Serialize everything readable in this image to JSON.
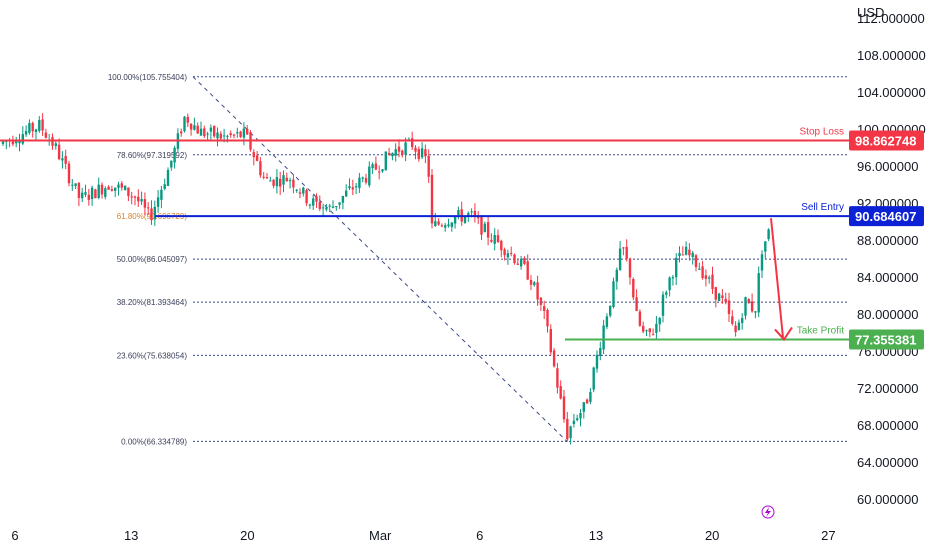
{
  "chart_data": {
    "type": "candlestick",
    "currency": "USD",
    "y_axis": {
      "ticks": [
        "112.000000",
        "108.000000",
        "104.000000",
        "100.000000",
        "96.000000",
        "92.000000",
        "88.000000",
        "84.000000",
        "80.000000",
        "76.000000",
        "72.000000",
        "68.000000",
        "64.000000",
        "60.000000"
      ],
      "ylim": [
        60,
        114
      ]
    },
    "x_axis": {
      "ticks": [
        {
          "label": "6",
          "day": 6
        },
        {
          "label": "13",
          "day": 13
        },
        {
          "label": "20",
          "day": 20
        },
        {
          "label": "Mar",
          "day": 28
        },
        {
          "label": "6",
          "day": 34
        },
        {
          "label": "13",
          "day": 41
        },
        {
          "label": "20",
          "day": 48
        },
        {
          "label": "27",
          "day": 55
        }
      ]
    },
    "fibonacci": {
      "levels": [
        {
          "label": "100.00%(105.755404)",
          "value": 105.755404
        },
        {
          "label": "78.60%(97.319592)",
          "value": 97.319592
        },
        {
          "label": "61.80%(90.696729)",
          "value": 90.696729
        },
        {
          "label": "50.00%(86.045097)",
          "value": 86.045097
        },
        {
          "label": "38.20%(81.393464)",
          "value": 81.393464
        },
        {
          "label": "23.60%(75.638054)",
          "value": 75.638054
        },
        {
          "label": "0.00%(66.334789)",
          "value": 66.334789
        }
      ]
    },
    "levels": [
      {
        "name": "Stop Loss",
        "value": "98.862748",
        "price": 98.862748,
        "color": "#f23645"
      },
      {
        "name": "Sell Entry",
        "value": "90.684607",
        "price": 90.684607,
        "color": "#0c22d4"
      },
      {
        "name": "Take Profit",
        "value": "77.355381",
        "price": 77.355381,
        "color": "#4caf50"
      }
    ],
    "colors": {
      "up": "#089981",
      "down": "#f23645",
      "fib": "#3a4a8a"
    }
  }
}
